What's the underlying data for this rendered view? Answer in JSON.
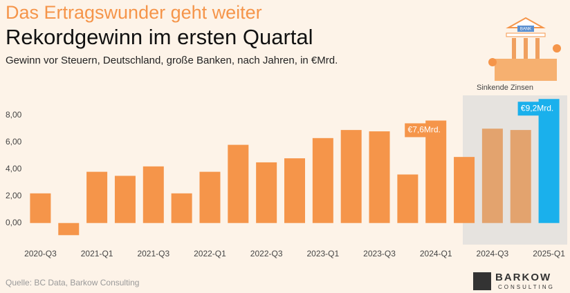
{
  "chart_data": {
    "type": "bar",
    "kicker": "Das Ertragswunder geht weiter",
    "title": "Rekordgewinn im ersten Quartal",
    "subtitle": "Gewinn vor Steuern, Deutschland, große Banken, nach Jahren, in €Mrd.",
    "source": "Quelle: BC Data, Barkow Consulting",
    "annotation": "Sinkende Zinsen",
    "illustration_label": "BANK",
    "logo": "BARKOW",
    "logo_sub": "CONSULTING",
    "categories": [
      "2020-Q3",
      null,
      "2021-Q1",
      null,
      "2021-Q3",
      null,
      "2022-Q1",
      null,
      "2022-Q3",
      null,
      "2023-Q1",
      null,
      "2023-Q3",
      null,
      "2024-Q1",
      null,
      "2024-Q3",
      null,
      "2025-Q1"
    ],
    "values": [
      2.2,
      -0.9,
      3.8,
      3.5,
      4.2,
      2.2,
      3.8,
      5.8,
      4.5,
      4.8,
      6.3,
      6.9,
      6.8,
      3.6,
      7.6,
      4.9,
      7.0,
      6.9,
      9.2
    ],
    "value_labels": [
      null,
      null,
      null,
      null,
      null,
      null,
      null,
      null,
      null,
      null,
      null,
      null,
      null,
      null,
      "€7,6Mrd.",
      null,
      null,
      null,
      "€9,2Mrd."
    ],
    "colors": [
      "#f5954a",
      "#f5954a",
      "#f5954a",
      "#f5954a",
      "#f5954a",
      "#f5954a",
      "#f5954a",
      "#f5954a",
      "#f5954a",
      "#f5954a",
      "#f5954a",
      "#f5954a",
      "#f5954a",
      "#f5954a",
      "#f5954a",
      "#f5954a",
      "#e3a36e",
      "#e3a36e",
      "#1ab0ec"
    ],
    "ylim": [
      -1.5,
      8.7
    ],
    "yticks": [
      {
        "value": 0,
        "label": "0,00"
      },
      {
        "value": 2,
        "label": "2,00"
      },
      {
        "value": 4,
        "label": "4,00"
      },
      {
        "value": 6,
        "label": "6,00"
      },
      {
        "value": 8,
        "label": "8,00"
      }
    ],
    "grid": false
  }
}
